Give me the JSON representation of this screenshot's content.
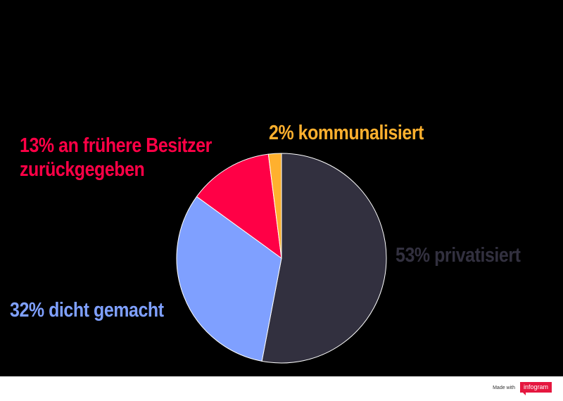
{
  "chart_data": {
    "type": "pie",
    "slices": [
      {
        "label": "53% privatisiert",
        "value": 53,
        "color": "#32303f"
      },
      {
        "label": "32% dicht gemacht",
        "value": 32,
        "color": "#7fa0ff"
      },
      {
        "label": "13% an frühere Besitzer zurückgegeben",
        "label_line1": "13% an frühere Besitzer",
        "label_line2": "zurückgegeben",
        "value": 13,
        "color": "#ff0046"
      },
      {
        "label": "2% kommunalisiert",
        "value": 2,
        "color": "#ffb02e"
      }
    ],
    "start": "12 o'clock",
    "direction": "clockwise",
    "label_colors": {
      "privatisiert": "#32303f",
      "dicht": "#7fa0ff",
      "zurueck": "#ff0046",
      "kommunal": "#ffb02e"
    }
  },
  "footer": {
    "made_with": "Made with",
    "brand": "infogram"
  }
}
